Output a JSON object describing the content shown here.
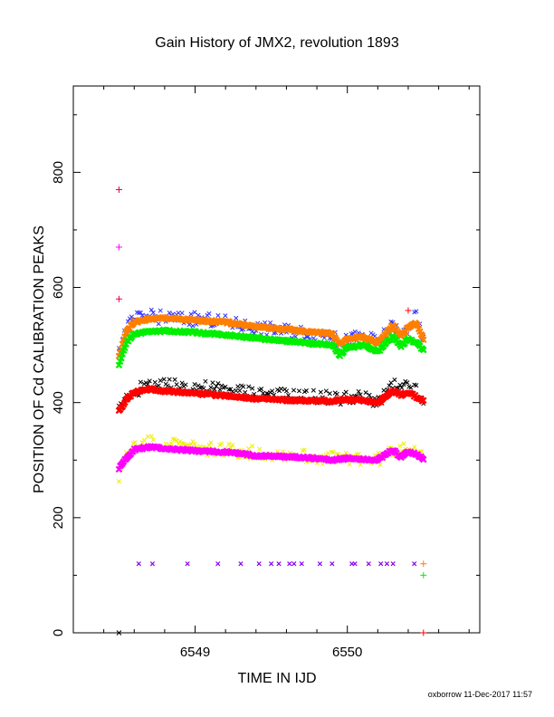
{
  "chart_data": {
    "type": "scatter",
    "title": "Gain History of JMX2, revolution 1893",
    "xlabel": "TIME IN IJD",
    "ylabel": "POSITION OF Cd CALIBRATION PEAKS",
    "xlim": [
      6548.2,
      6550.87
    ],
    "ylim": [
      0,
      950
    ],
    "xticks": [
      6549,
      6550
    ],
    "yticks": [
      0,
      200,
      400,
      600,
      800
    ],
    "xtick_labels": [
      "6549",
      "6550"
    ],
    "ytick_labels": [
      "0",
      "200",
      "400",
      "600",
      "800"
    ],
    "grid": false,
    "footer": "oxborrow 11-Dec-2017 11:57",
    "colors": {
      "orange": "#ff7f00",
      "blue": "#3333ff",
      "green": "#00ee00",
      "black": "#000000",
      "red": "#ff0000",
      "yellow": "#eeee00",
      "magenta": "#ff00ff",
      "purple": "#8800ee",
      "crimson": "#e8003c"
    },
    "series": [
      {
        "key": "blue",
        "color": "#3333ff",
        "marker": "x",
        "scatter": 12,
        "x": [
          6548.5,
          6548.55,
          6548.6,
          6548.7,
          6548.8,
          6549.0,
          6549.2,
          6549.4,
          6549.6,
          6549.8,
          6549.9,
          6549.95,
          6550.0,
          6550.1,
          6550.2,
          6550.3,
          6550.35,
          6550.4,
          6550.45,
          6550.5
        ],
        "y": [
          490,
          530,
          545,
          550,
          548,
          545,
          540,
          530,
          525,
          520,
          520,
          495,
          510,
          515,
          505,
          535,
          515,
          530,
          550,
          505
        ]
      },
      {
        "key": "orange",
        "color": "#ff7f00",
        "marker": "thick",
        "scatter": 2,
        "x": [
          6548.5,
          6548.55,
          6548.6,
          6548.7,
          6548.8,
          6549.0,
          6549.2,
          6549.4,
          6549.6,
          6549.8,
          6549.9,
          6549.95,
          6550.0,
          6550.1,
          6550.2,
          6550.3,
          6550.35,
          6550.4,
          6550.45,
          6550.5
        ],
        "y": [
          480,
          525,
          540,
          545,
          547,
          543,
          540,
          532,
          527,
          522,
          520,
          500,
          510,
          515,
          503,
          535,
          515,
          530,
          540,
          510
        ]
      },
      {
        "key": "green",
        "color": "#00ee00",
        "marker": "thick",
        "scatter": 2,
        "x": [
          6548.5,
          6548.55,
          6548.6,
          6548.7,
          6548.8,
          6549.0,
          6549.2,
          6549.4,
          6549.6,
          6549.8,
          6549.9,
          6549.95,
          6550.0,
          6550.1,
          6550.2,
          6550.3,
          6550.35,
          6550.4,
          6550.45,
          6550.5
        ],
        "y": [
          465,
          505,
          520,
          523,
          525,
          522,
          518,
          512,
          507,
          502,
          500,
          482,
          495,
          500,
          488,
          515,
          498,
          510,
          505,
          490
        ]
      },
      {
        "key": "black",
        "color": "#000000",
        "marker": "x",
        "scatter": 12,
        "x": [
          6548.5,
          6548.55,
          6548.6,
          6548.7,
          6548.8,
          6549.0,
          6549.2,
          6549.4,
          6549.6,
          6549.8,
          6549.9,
          6549.95,
          6550.0,
          6550.1,
          6550.2,
          6550.3,
          6550.35,
          6550.4,
          6550.45,
          6550.5
        ],
        "y": [
          390,
          410,
          420,
          430,
          432,
          428,
          422,
          418,
          412,
          410,
          408,
          405,
          410,
          408,
          403,
          430,
          420,
          430,
          420,
          395
        ]
      },
      {
        "key": "red",
        "color": "#ff0000",
        "marker": "thick",
        "scatter": 2,
        "x": [
          6548.5,
          6548.55,
          6548.6,
          6548.7,
          6548.8,
          6549.0,
          6549.2,
          6549.4,
          6549.6,
          6549.8,
          6549.9,
          6549.95,
          6550.0,
          6550.1,
          6550.2,
          6550.3,
          6550.35,
          6550.4,
          6550.45,
          6550.5
        ],
        "y": [
          385,
          405,
          418,
          424,
          420,
          416,
          412,
          407,
          404,
          403,
          402,
          405,
          405,
          404,
          400,
          420,
          413,
          418,
          410,
          403
        ]
      },
      {
        "key": "yellow",
        "color": "#eeee00",
        "marker": "x",
        "scatter": 12,
        "x": [
          6548.5,
          6548.55,
          6548.6,
          6548.7,
          6548.8,
          6549.0,
          6549.2,
          6549.4,
          6549.6,
          6549.8,
          6549.9,
          6549.95,
          6550.0,
          6550.1,
          6550.2,
          6550.3,
          6550.35,
          6550.4,
          6550.45,
          6550.5
        ],
        "y": [
          270,
          310,
          325,
          330,
          330,
          322,
          318,
          312,
          310,
          305,
          303,
          305,
          305,
          302,
          300,
          315,
          325,
          322,
          320,
          298
        ]
      },
      {
        "key": "magenta",
        "color": "#ff00ff",
        "marker": "thick",
        "scatter": 2,
        "x": [
          6548.5,
          6548.55,
          6548.6,
          6548.7,
          6548.8,
          6549.0,
          6549.2,
          6549.4,
          6549.6,
          6549.8,
          6549.9,
          6549.95,
          6550.0,
          6550.1,
          6550.2,
          6550.3,
          6550.35,
          6550.4,
          6550.45,
          6550.5
        ],
        "y": [
          285,
          305,
          318,
          323,
          320,
          316,
          314,
          308,
          306,
          303,
          300,
          302,
          303,
          302,
          300,
          318,
          305,
          315,
          310,
          302
        ]
      }
    ],
    "sparse_points": [
      {
        "x": 6548.5,
        "y": 770,
        "marker": "+",
        "color": "#e8003c"
      },
      {
        "x": 6548.5,
        "y": 670,
        "marker": "+",
        "color": "#ff00ff"
      },
      {
        "x": 6548.5,
        "y": 580,
        "marker": "+",
        "color": "#e8003c"
      },
      {
        "x": 6548.5,
        "y": 0,
        "marker": "x",
        "color": "#000000"
      },
      {
        "x": 6550.5,
        "y": 120,
        "marker": "+",
        "color": "#ff7f00"
      },
      {
        "x": 6550.5,
        "y": 100,
        "marker": "+",
        "color": "#00ee00"
      },
      {
        "x": 6550.5,
        "y": 0,
        "marker": "+",
        "color": "#ff0000"
      },
      {
        "x": 6550.4,
        "y": 560,
        "marker": "+",
        "color": "#ff0000"
      }
    ],
    "purple_row": {
      "y": 120,
      "color": "#8800ee",
      "marker": "x",
      "x": [
        6548.63,
        6548.72,
        6548.95,
        6549.15,
        6549.3,
        6549.42,
        6549.5,
        6549.55,
        6549.62,
        6549.65,
        6549.7,
        6549.82,
        6549.9,
        6550.03,
        6550.05,
        6550.14,
        6550.22,
        6550.26,
        6550.3,
        6550.44
      ]
    }
  }
}
